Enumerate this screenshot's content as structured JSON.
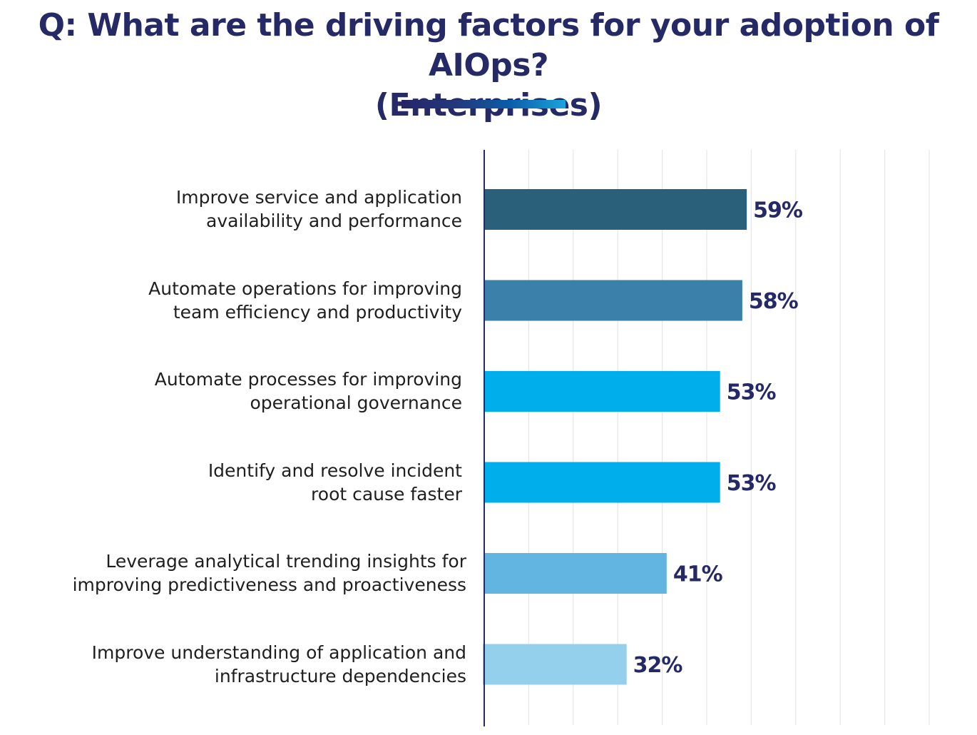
{
  "title_line1": "Q: What are the driving factors for your adoption of AIOps?",
  "title_line2": "(Enterprises)",
  "chart_data": {
    "type": "bar",
    "orientation": "horizontal",
    "title": "Q: What are the driving factors for your adoption of AIOps? (Enterprises)",
    "xlabel": "",
    "ylabel": "",
    "xlim": [
      0,
      100
    ],
    "grid": true,
    "categories": [
      "Improve service and application availability and performance",
      "Automate operations for improving team efficiency and productivity",
      "Automate processes for improving operational governance",
      "Identify and resolve incident root cause faster",
      "Leverage analytical trending insights for improving predictiveness and proactiveness",
      "Improve understanding of application and infrastructure dependencies"
    ],
    "label_lines": [
      [
        "Improve service and application",
        "availability and performance"
      ],
      [
        "Automate operations for improving",
        "team efficiency and productivity"
      ],
      [
        "Automate processes for improving",
        "operational governance"
      ],
      [
        "Identify and resolve incident",
        "root cause faster"
      ],
      [
        "Leverage analytical trending insights for",
        "improving predictiveness and proactiveness"
      ],
      [
        "Improve understanding of application and",
        "infrastructure dependencies"
      ]
    ],
    "values": [
      59,
      58,
      53,
      53,
      41,
      32
    ],
    "value_labels": [
      "59%",
      "58%",
      "53%",
      "53%",
      "41%",
      "32%"
    ],
    "colors": [
      "#2a6079",
      "#3a80aa",
      "#00aeeb",
      "#00aeeb",
      "#62b5e0",
      "#94cfeb"
    ],
    "value_label_color": "#252a66",
    "axis_color": "#252a66",
    "grid_color": "#e6e6e6"
  }
}
